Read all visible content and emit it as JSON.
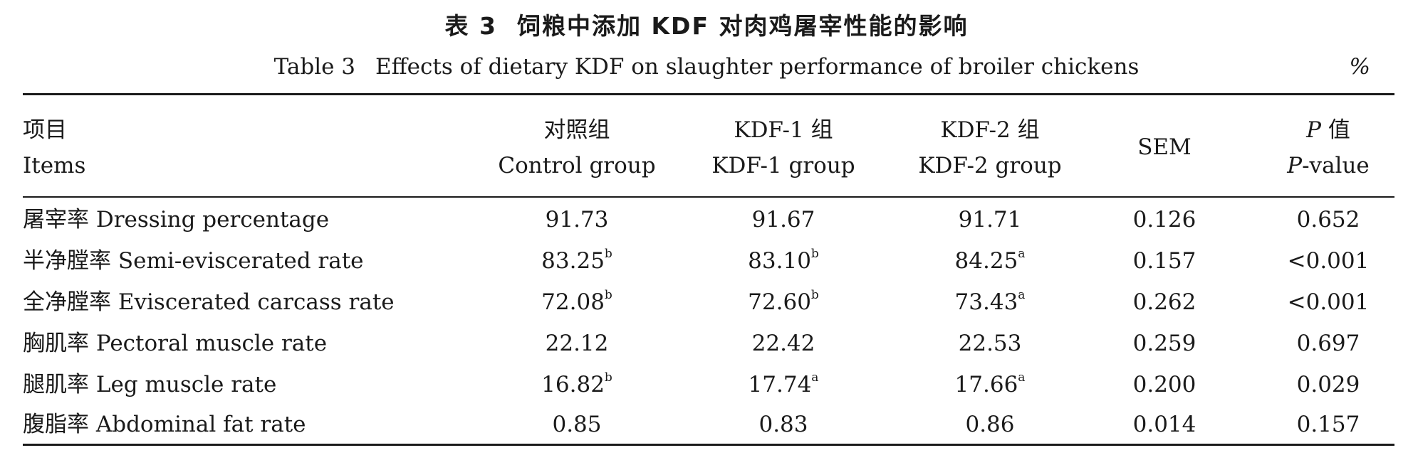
{
  "caption": {
    "cn_number": "表 3",
    "cn_title": "饲粮中添加 KDF 对肉鸡屠宰性能的影响",
    "en_number": "Table 3",
    "en_title": "Effects of dietary KDF on slaughter performance of broiler chickens",
    "unit": "%"
  },
  "header": {
    "items_cn": "项目",
    "items_en": "Items",
    "control_cn": "对照组",
    "control_en": "Control group",
    "kdf1_cn": "KDF-1 组",
    "kdf1_en": "KDF-1 group",
    "kdf2_cn": "KDF-2 组",
    "kdf2_en": "KDF-2 group",
    "sem": "SEM",
    "p_cn_letter": "P",
    "p_cn_suffix": "值",
    "p_en_letter": "P",
    "p_en_suffix": "-value"
  },
  "rows": [
    {
      "cn": "屠宰率",
      "en": "Dressing percentage",
      "control": "91.73",
      "control_sup": "",
      "kdf1": "91.67",
      "kdf1_sup": "",
      "kdf2": "91.71",
      "kdf2_sup": "",
      "sem": "0.126",
      "p": "0.652"
    },
    {
      "cn": "半净膛率",
      "en": "Semi-eviscerated rate",
      "control": "83.25",
      "control_sup": "b",
      "kdf1": "83.10",
      "kdf1_sup": "b",
      "kdf2": "84.25",
      "kdf2_sup": "a",
      "sem": "0.157",
      "p": "<0.001"
    },
    {
      "cn": "全净膛率",
      "en": "Eviscerated carcass rate",
      "control": "72.08",
      "control_sup": "b",
      "kdf1": "72.60",
      "kdf1_sup": "b",
      "kdf2": "73.43",
      "kdf2_sup": "a",
      "sem": "0.262",
      "p": "<0.001"
    },
    {
      "cn": "胸肌率",
      "en": "Pectoral muscle rate",
      "control": "22.12",
      "control_sup": "",
      "kdf1": "22.42",
      "kdf1_sup": "",
      "kdf2": "22.53",
      "kdf2_sup": "",
      "sem": "0.259",
      "p": "0.697"
    },
    {
      "cn": "腿肌率",
      "en": "Leg muscle rate",
      "control": "16.82",
      "control_sup": "b",
      "kdf1": "17.74",
      "kdf1_sup": "a",
      "kdf2": "17.66",
      "kdf2_sup": "a",
      "sem": "0.200",
      "p": "0.029"
    },
    {
      "cn": "腹脂率",
      "en": "Abdominal fat rate",
      "control": "0.85",
      "control_sup": "",
      "kdf1": "0.83",
      "kdf1_sup": "",
      "kdf2": "0.86",
      "kdf2_sup": "",
      "sem": "0.014",
      "p": "0.157"
    }
  ]
}
